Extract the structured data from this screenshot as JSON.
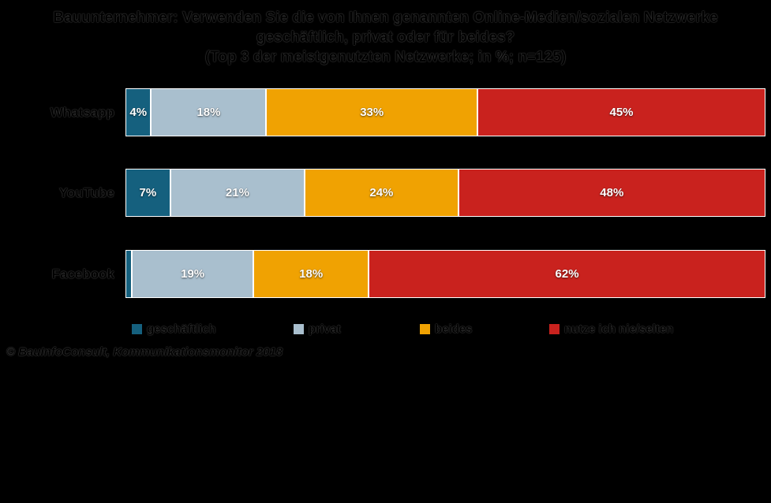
{
  "title": {
    "line1": "Bauunternehmer: Verwenden Sie die von Ihnen genannten Online-Medien/sozialen Netzwerke",
    "line2": "geschäftlich, privat oder für beides?",
    "line3": "(Top 3 der meistgenutzten Netzwerke; in %; n=125)"
  },
  "source": "© BauInfoConsult, Kommunikationsmonitor 2018",
  "chart_data": {
    "type": "bar",
    "variant": "horizontal-stacked",
    "title": "Bauunternehmer: Verwenden Sie die von Ihnen genannten Online-Medien/sozialen Netzwerke geschäftlich, privat oder für beides? (Top 3 der meistgenutzten Netzwerke; in %; n=125)",
    "categories": [
      "Whatsapp",
      "YouTube",
      "Facebook"
    ],
    "series": [
      {
        "name": "geschäftlich",
        "color": "#15607E",
        "values": [
          4,
          7,
          1
        ],
        "labels": [
          "4%",
          "7%",
          ""
        ]
      },
      {
        "name": "privat",
        "color": "#A9BFCE",
        "values": [
          18,
          21,
          19
        ],
        "labels": [
          "18%",
          "21%",
          "19%"
        ]
      },
      {
        "name": "beides",
        "color": "#F0A202",
        "values": [
          33,
          24,
          18
        ],
        "labels": [
          "33%",
          "24%",
          "18%"
        ]
      },
      {
        "name": "nutze ich nie/selten",
        "color": "#C9221E",
        "values": [
          45,
          48,
          62
        ],
        "labels": [
          "45%",
          "48%",
          "62%"
        ]
      }
    ],
    "xlim": [
      0,
      100
    ],
    "value_unit": "%",
    "grid": false,
    "legend_position": "bottom",
    "background": "#000000",
    "segment_border_color": "#FFFFFF"
  }
}
